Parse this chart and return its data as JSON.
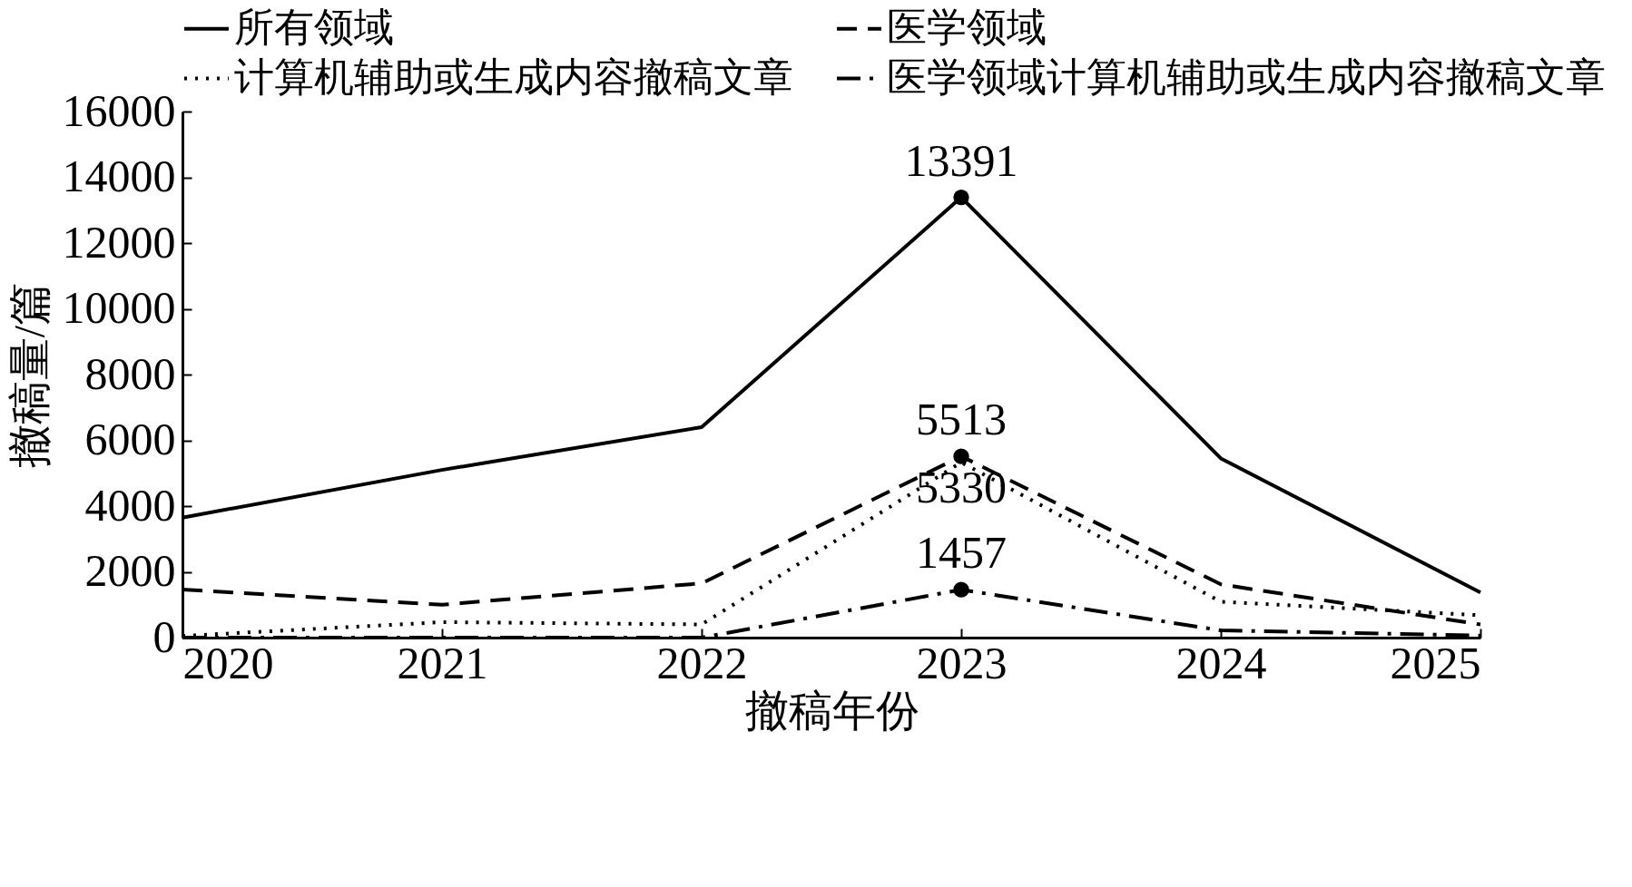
{
  "chart_data": {
    "type": "line",
    "xlabel": "撤稿年份",
    "ylabel": "撤稿量/篇",
    "x": [
      2020,
      2021,
      2022,
      2023,
      2024,
      2025
    ],
    "xlim": [
      2020,
      2025
    ],
    "xticks": [
      2020,
      2021,
      2022,
      2023,
      2024,
      2025
    ],
    "ylim": [
      0,
      16000
    ],
    "yticks": [
      0,
      2000,
      4000,
      6000,
      8000,
      10000,
      12000,
      14000,
      16000
    ],
    "grid": false,
    "legend": "top",
    "series": [
      {
        "name": "所有领域",
        "color": "#000000",
        "line_style": "solid",
        "values": [
          3650,
          5100,
          6400,
          13391,
          5450,
          1370
        ],
        "value_labels": [
          null,
          null,
          null,
          "13391",
          null,
          null
        ]
      },
      {
        "name": "医学领域",
        "color": "#000000",
        "line_style": "dashed",
        "values": [
          1460,
          1000,
          1650,
          5513,
          1620,
          400
        ],
        "value_labels": [
          null,
          null,
          null,
          "5513",
          null,
          null
        ]
      },
      {
        "name": "计算机辅助或生成内容撤稿文章",
        "color": "#000000",
        "line_style": "dotted",
        "values": [
          50,
          470,
          400,
          5330,
          1090,
          680
        ],
        "value_labels": [
          null,
          null,
          null,
          "5330",
          null,
          null
        ]
      },
      {
        "name": "医学领域计算机辅助或生成内容撤稿文章",
        "color": "#000000",
        "line_style": "dashdot",
        "values": [
          0,
          0,
          0,
          1457,
          220,
          60
        ],
        "value_labels": [
          null,
          null,
          null,
          "1457",
          null,
          null
        ]
      },
      {
        "type": "scatter",
        "color": "#000000",
        "values": [
          null,
          null,
          null,
          13391,
          null,
          null
        ]
      },
      {
        "type": "scatter",
        "color": "#000000",
        "values": [
          null,
          null,
          null,
          5513,
          null,
          null
        ]
      },
      {
        "type": "scatter",
        "color": "#000000",
        "values": [
          null,
          null,
          null,
          1457,
          null,
          null
        ]
      }
    ]
  }
}
